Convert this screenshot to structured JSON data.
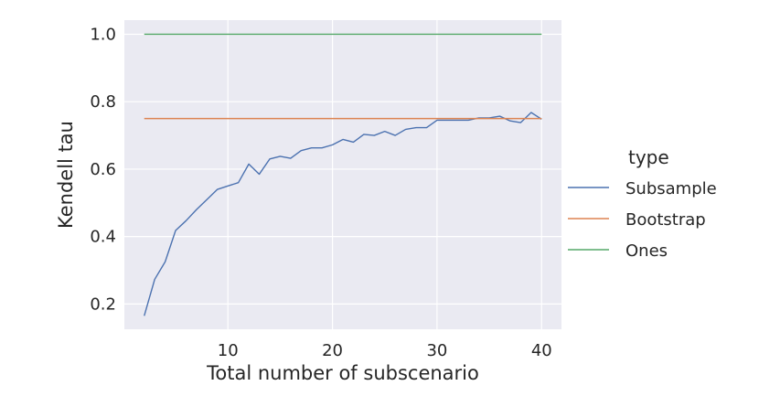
{
  "chart_data": {
    "type": "line",
    "title": "",
    "xlabel": "Total number of subscenario",
    "ylabel": "Kendell tau",
    "xlim": [
      0.1,
      41.9
    ],
    "ylim": [
      0.125,
      1.042
    ],
    "xticks": [
      10,
      20,
      30,
      40
    ],
    "yticks": [
      0.2,
      0.4,
      0.6,
      0.8,
      1.0
    ],
    "xtick_labels": [
      "10",
      "20",
      "30",
      "40"
    ],
    "ytick_labels": [
      "0.2",
      "0.4",
      "0.6",
      "0.8",
      "1.0"
    ],
    "grid": true,
    "legend": {
      "title": "type",
      "placement": "right-outside"
    },
    "series": [
      {
        "name": "Subsample",
        "color": "#4c72b0",
        "x": [
          2,
          3,
          4,
          5,
          6,
          7,
          8,
          9,
          10,
          11,
          12,
          13,
          14,
          15,
          16,
          17,
          18,
          19,
          20,
          21,
          22,
          23,
          24,
          25,
          26,
          27,
          28,
          29,
          30,
          31,
          32,
          33,
          34,
          35,
          36,
          37,
          38,
          39,
          40
        ],
        "y": [
          0.165,
          0.273,
          0.325,
          0.418,
          0.447,
          0.48,
          0.51,
          0.54,
          0.55,
          0.56,
          0.615,
          0.585,
          0.63,
          0.638,
          0.632,
          0.655,
          0.663,
          0.663,
          0.672,
          0.688,
          0.68,
          0.703,
          0.7,
          0.712,
          0.7,
          0.718,
          0.723,
          0.723,
          0.745,
          0.745,
          0.745,
          0.745,
          0.752,
          0.752,
          0.757,
          0.743,
          0.738,
          0.768,
          0.748
        ]
      },
      {
        "name": "Bootstrap",
        "color": "#dd8452",
        "x": [
          2,
          40
        ],
        "y": [
          0.75,
          0.75
        ]
      },
      {
        "name": "Ones",
        "color": "#55a868",
        "x": [
          2,
          40
        ],
        "y": [
          1.0,
          1.0
        ]
      }
    ]
  }
}
